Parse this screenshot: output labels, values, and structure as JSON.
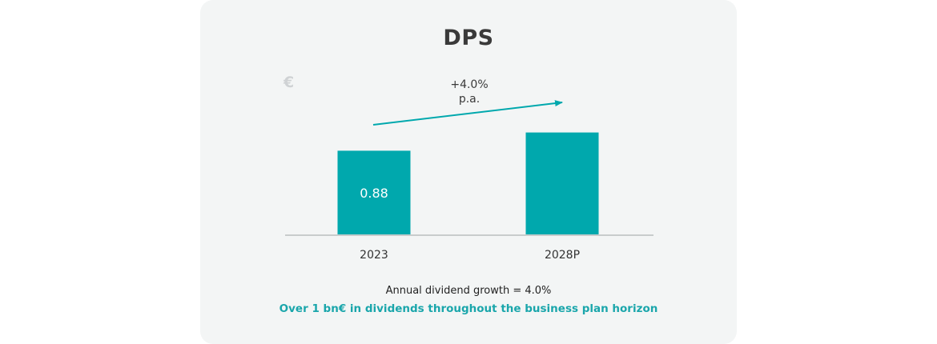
{
  "chart_data": {
    "type": "bar",
    "title": "DPS",
    "unit": "€",
    "categories": [
      "2023",
      "2028P"
    ],
    "values": [
      0.88,
      1.07
    ],
    "data_labels": [
      "0.88",
      ""
    ],
    "bar_color": "#00a8ad",
    "growth_annotation": {
      "line1": "+4.0%",
      "line2": "p.a."
    },
    "grid": false,
    "legend": "none"
  },
  "footer": {
    "line1": "Annual dividend growth = 4.0%",
    "line2": "Over 1 bn€ in dividends throughout the business plan horizon"
  },
  "colors": {
    "accent": "#00a8ad",
    "footer_accent": "#1aa6ab",
    "axis": "#c8cccc"
  }
}
